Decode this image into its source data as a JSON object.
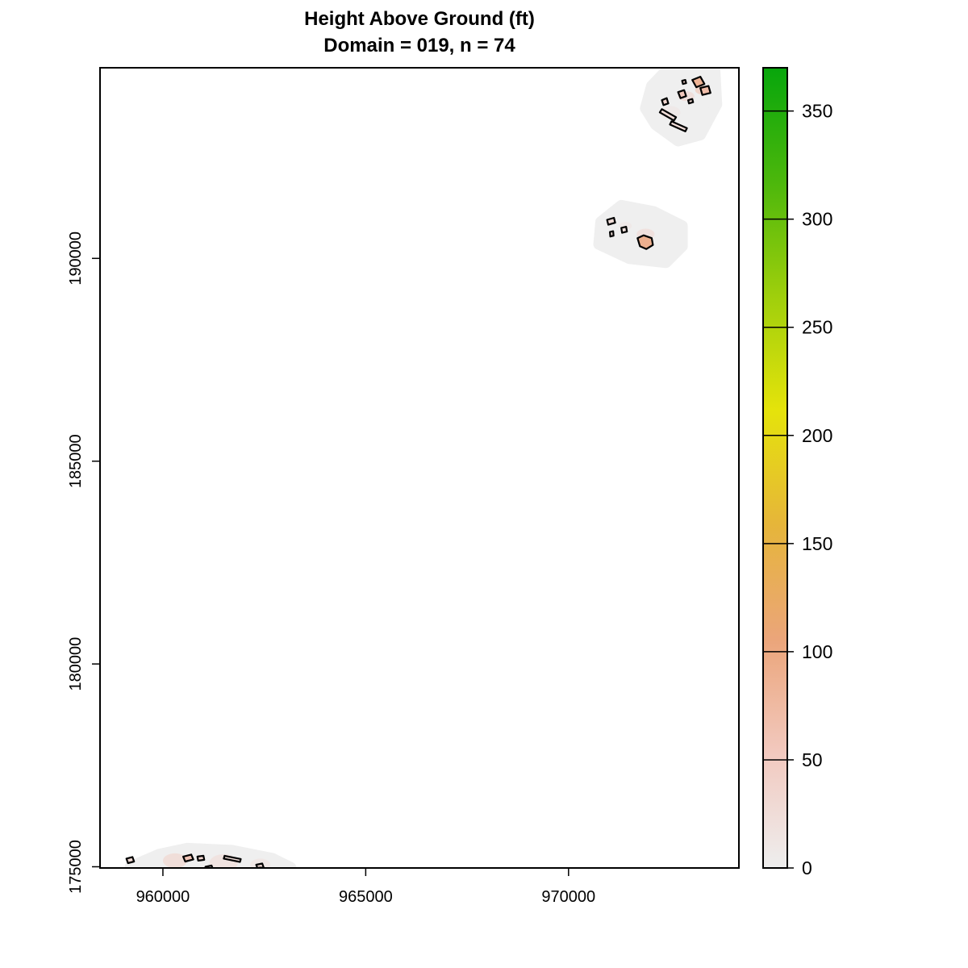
{
  "chart_data": {
    "type": "heatmap",
    "title": "Height Above Ground (ft)",
    "subtitle": "Domain = 019, n = 74",
    "xlabel": "",
    "ylabel": "",
    "x_ticks": [
      960000,
      965000,
      970000
    ],
    "x_tick_labels": [
      "960000",
      "965000",
      "970000"
    ],
    "y_ticks": [
      175000,
      180000,
      185000,
      190000
    ],
    "y_tick_labels": [
      "175000",
      "180000",
      "185000",
      "190000"
    ],
    "xlim": [
      958450,
      974200
    ],
    "ylim": [
      174970,
      194700
    ],
    "grid": false,
    "colorbar": {
      "range": [
        0,
        370
      ],
      "ticks": [
        0,
        50,
        100,
        150,
        200,
        250,
        300,
        350
      ],
      "tick_labels": [
        "0",
        "50",
        "100",
        "150",
        "200",
        "250",
        "300",
        "350"
      ],
      "colors": [
        "#eeeeee",
        "#f2c9bf",
        "#eba57a",
        "#e6b53a",
        "#e5e30b",
        "#9fcf0c",
        "#4cb70c",
        "#07a60c"
      ]
    },
    "background_color": "#efefef",
    "footprint_color": "#000000",
    "clusters": [
      {
        "name": "northeast",
        "buffer": [
          [
            972050,
            194250
          ],
          [
            972500,
            194720
          ],
          [
            973600,
            194700
          ],
          [
            973650,
            193800
          ],
          [
            973250,
            193050
          ],
          [
            972700,
            192900
          ],
          [
            972150,
            193300
          ],
          [
            971900,
            193700
          ]
        ],
        "patches": [
          {
            "x": 972900,
            "y": 194000,
            "r": 200,
            "value": 40
          },
          {
            "x": 973300,
            "y": 194150,
            "r": 180,
            "value": 70
          },
          {
            "x": 972500,
            "y": 193600,
            "r": 260,
            "value": 15
          }
        ],
        "buildings": [
          {
            "polygon": [
              [
                973050,
                194400
              ],
              [
                973250,
                194480
              ],
              [
                973350,
                194300
              ],
              [
                973150,
                194220
              ]
            ],
            "value": 85
          },
          {
            "polygon": [
              [
                973250,
                194200
              ],
              [
                973450,
                194250
              ],
              [
                973500,
                194080
              ],
              [
                973300,
                194030
              ]
            ],
            "value": 70
          },
          {
            "polygon": [
              [
                972700,
                194100
              ],
              [
                972850,
                194150
              ],
              [
                972900,
                194000
              ],
              [
                972760,
                193950
              ]
            ],
            "value": 55
          },
          {
            "polygon": [
              [
                972250,
                193600
              ],
              [
                972600,
                193400
              ],
              [
                972650,
                193480
              ],
              [
                972300,
                193680
              ]
            ],
            "value": 25
          },
          {
            "polygon": [
              [
                972500,
                193300
              ],
              [
                972880,
                193130
              ],
              [
                972920,
                193210
              ],
              [
                972540,
                193380
              ]
            ],
            "value": 25
          },
          {
            "polygon": [
              [
                972300,
                193900
              ],
              [
                972420,
                193950
              ],
              [
                972460,
                193820
              ],
              [
                972340,
                193780
              ]
            ],
            "value": 35
          },
          {
            "polygon": [
              [
                972800,
                194380
              ],
              [
                972880,
                194400
              ],
              [
                972900,
                194320
              ],
              [
                972820,
                194300
              ]
            ],
            "value": 40
          },
          {
            "polygon": [
              [
                972950,
                193900
              ],
              [
                973050,
                193930
              ],
              [
                973070,
                193850
              ],
              [
                972970,
                193820
              ]
            ],
            "value": 30
          }
        ]
      },
      {
        "name": "central-east",
        "buffer": [
          [
            970800,
            190900
          ],
          [
            971300,
            191300
          ],
          [
            972100,
            191150
          ],
          [
            972800,
            190800
          ],
          [
            972800,
            190300
          ],
          [
            972400,
            189900
          ],
          [
            971500,
            190000
          ],
          [
            970750,
            190350
          ]
        ],
        "patches": [
          {
            "x": 971900,
            "y": 190600,
            "r": 220,
            "value": 35
          },
          {
            "x": 971400,
            "y": 190800,
            "r": 160,
            "value": 15
          }
        ],
        "buildings": [
          {
            "polygon": [
              [
                971700,
                190500
              ],
              [
                971850,
                190570
              ],
              [
                972050,
                190500
              ],
              [
                972080,
                190330
              ],
              [
                971920,
                190230
              ],
              [
                971760,
                190300
              ]
            ],
            "value": 90
          },
          {
            "polygon": [
              [
                970950,
                190950
              ],
              [
                971120,
                191000
              ],
              [
                971150,
                190880
              ],
              [
                970980,
                190830
              ]
            ],
            "value": 25
          },
          {
            "polygon": [
              [
                971300,
                190750
              ],
              [
                971420,
                190780
              ],
              [
                971440,
                190660
              ],
              [
                971320,
                190630
              ]
            ],
            "value": 20
          },
          {
            "polygon": [
              [
                971020,
                190650
              ],
              [
                971100,
                190670
              ],
              [
                971110,
                190560
              ],
              [
                971030,
                190540
              ]
            ],
            "value": 25
          }
        ]
      },
      {
        "name": "southwest",
        "buffer": [
          [
            959200,
            175000
          ],
          [
            959900,
            175300
          ],
          [
            960600,
            175450
          ],
          [
            961700,
            175400
          ],
          [
            962700,
            175200
          ],
          [
            963150,
            174980
          ],
          [
            959200,
            174970
          ]
        ],
        "patches": [
          {
            "x": 960300,
            "y": 175150,
            "r": 300,
            "value": 45
          },
          {
            "x": 961500,
            "y": 175100,
            "r": 350,
            "value": 30
          },
          {
            "x": 962400,
            "y": 175050,
            "r": 250,
            "value": 20
          }
        ],
        "buildings": [
          {
            "polygon": [
              [
                960500,
                175250
              ],
              [
                960700,
                175300
              ],
              [
                960750,
                175180
              ],
              [
                960550,
                175130
              ]
            ],
            "value": 60
          },
          {
            "polygon": [
              [
                959100,
                175200
              ],
              [
                959250,
                175240
              ],
              [
                959290,
                175130
              ],
              [
                959140,
                175090
              ]
            ],
            "value": 30
          },
          {
            "polygon": [
              [
                960850,
                175250
              ],
              [
                961000,
                175270
              ],
              [
                961020,
                175170
              ],
              [
                960870,
                175150
              ]
            ],
            "value": 35
          },
          {
            "polygon": [
              [
                961500,
                175200
              ],
              [
                961900,
                175120
              ],
              [
                961920,
                175190
              ],
              [
                961520,
                175270
              ]
            ],
            "value": 25
          },
          {
            "polygon": [
              [
                962300,
                175050
              ],
              [
                962450,
                175080
              ],
              [
                962480,
                174990
              ],
              [
                962330,
                174970
              ]
            ],
            "value": 30
          },
          {
            "polygon": [
              [
                961050,
                175000
              ],
              [
                961200,
                175030
              ],
              [
                961230,
                174950
              ],
              [
                961080,
                174920
              ]
            ],
            "value": 20
          }
        ]
      }
    ]
  }
}
